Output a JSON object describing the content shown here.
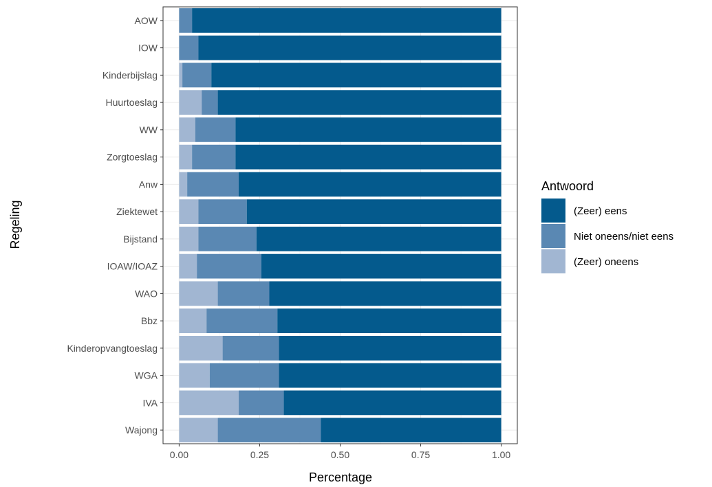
{
  "chart_data": {
    "type": "bar",
    "orientation": "horizontal",
    "stacked": true,
    "categories": [
      "AOW",
      "IOW",
      "Kinderbijslag",
      "Huurtoeslag",
      "WW",
      "Zorgtoeslag",
      "Anw",
      "Ziektewet",
      "Bijstand",
      "IOAW/IOAZ",
      "WAO",
      "Bbz",
      "Kinderopvangtoeslag",
      "WGA",
      "IVA",
      "Wajong"
    ],
    "series": [
      {
        "name": "(Zeer) oneens",
        "color": "#a1b6d2",
        "values": [
          0.0,
          0.0,
          0.01,
          0.07,
          0.05,
          0.04,
          0.025,
          0.06,
          0.06,
          0.055,
          0.12,
          0.085,
          0.135,
          0.095,
          0.185,
          0.12
        ]
      },
      {
        "name": "Niet oneens/niet eens",
        "color": "#5a88b3",
        "values": [
          0.04,
          0.06,
          0.09,
          0.05,
          0.125,
          0.135,
          0.16,
          0.15,
          0.18,
          0.2,
          0.16,
          0.22,
          0.175,
          0.215,
          0.14,
          0.32
        ]
      },
      {
        "name": "(Zeer) eens",
        "color": "#045a8d",
        "values": [
          0.96,
          0.94,
          0.9,
          0.88,
          0.825,
          0.825,
          0.815,
          0.79,
          0.76,
          0.745,
          0.72,
          0.695,
          0.69,
          0.69,
          0.675,
          0.56
        ]
      }
    ],
    "xlabel": "Percentage",
    "ylabel": "Regeling",
    "xlim": [
      -0.05,
      1.05
    ],
    "x_ticks": [
      "0.00",
      "0.25",
      "0.50",
      "0.75",
      "1.00"
    ],
    "x_tick_values": [
      0,
      0.25,
      0.5,
      0.75,
      1.0
    ],
    "grid": true,
    "legend": {
      "title": "Antwoord",
      "placement": "right",
      "entries": [
        "(Zeer) eens",
        "Niet oneens/niet eens",
        "(Zeer) oneens"
      ]
    }
  }
}
